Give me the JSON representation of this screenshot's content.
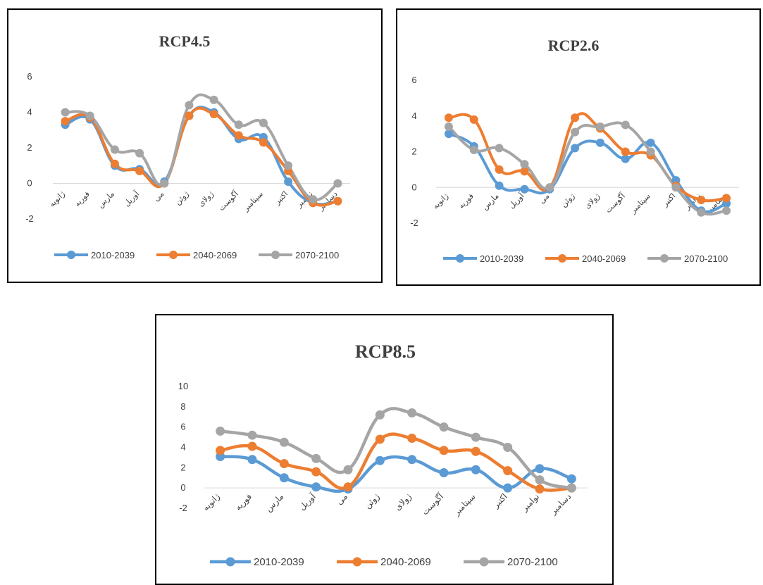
{
  "colors": {
    "s1": "#5b9bd5",
    "s2": "#ed7d31",
    "s3": "#a5a5a5",
    "axis": "#d9d9d9",
    "text": "#404040",
    "border": "#000000"
  },
  "months": [
    "ژانویه",
    "فوریه",
    "مارس",
    "آوریل",
    "می",
    "ژوئن",
    "ژولای",
    "آگوست",
    "سپتامبر",
    "اکتبر",
    "نوامبر",
    "دسامبر"
  ],
  "chart_data": [
    {
      "type": "line",
      "title": "RCP4.5",
      "categories": [
        "ژانویه",
        "فوریه",
        "مارس",
        "آوریل",
        "می",
        "ژوئن",
        "ژولای",
        "آگوست",
        "سپتامبر",
        "اکتبر",
        "نوامبر",
        "دسامبر"
      ],
      "ylim": [
        -2,
        6
      ],
      "yticks": [
        "-2",
        "0",
        "2",
        "4",
        "6"
      ],
      "grid": false,
      "legend_position": "bottom",
      "series": [
        {
          "name": "2010-2039",
          "values": [
            3.3,
            3.6,
            1.0,
            0.8,
            0.1,
            3.8,
            4.0,
            2.5,
            2.6,
            0.1,
            -1.1,
            -1.0
          ]
        },
        {
          "name": "2040-2069",
          "values": [
            3.5,
            3.7,
            1.1,
            0.7,
            0.0,
            3.8,
            3.9,
            2.7,
            2.3,
            0.7,
            -1.1,
            -1.0
          ]
        },
        {
          "name": "2070-2100",
          "values": [
            4.0,
            3.8,
            1.9,
            1.7,
            0.0,
            4.4,
            4.7,
            3.3,
            3.4,
            1.0,
            -0.9,
            0.0
          ]
        }
      ]
    },
    {
      "type": "line",
      "title": "RCP2.6",
      "categories": [
        "ژانویه",
        "فوریه",
        "مارس",
        "آوریل",
        "می",
        "ژوئن",
        "ژولای",
        "آگوست",
        "سپتامبر",
        "اکتبر",
        "نوامبر",
        "دسامبر"
      ],
      "ylim": [
        -2,
        6
      ],
      "yticks": [
        "-2",
        "0",
        "2",
        "4",
        "6"
      ],
      "grid": false,
      "legend_position": "bottom",
      "series": [
        {
          "name": "2010-2039",
          "values": [
            3.0,
            2.3,
            0.1,
            -0.1,
            -0.1,
            2.2,
            2.5,
            1.6,
            2.5,
            0.4,
            -1.3,
            -0.9
          ]
        },
        {
          "name": "2040-2069",
          "values": [
            3.9,
            3.8,
            1.0,
            0.9,
            0.0,
            3.9,
            3.3,
            2.0,
            1.8,
            0.1,
            -0.7,
            -0.6
          ]
        },
        {
          "name": "2070-2100",
          "values": [
            3.4,
            2.1,
            2.2,
            1.3,
            0.0,
            3.1,
            3.4,
            3.5,
            2.0,
            0.0,
            -1.4,
            -1.3
          ]
        }
      ]
    },
    {
      "type": "line",
      "title": "RCP8.5",
      "categories": [
        "ژانویه",
        "فوریه",
        "مارس",
        "آوریل",
        "می",
        "ژوئن",
        "ژولای",
        "آگوست",
        "سپتامبر",
        "اکتبر",
        "نوامبر",
        "دسامبر"
      ],
      "ylim": [
        -2,
        10
      ],
      "yticks": [
        "-2",
        "0",
        "2",
        "4",
        "6",
        "8",
        "10"
      ],
      "grid": false,
      "legend_position": "bottom",
      "series": [
        {
          "name": "2010-2039",
          "values": [
            3.1,
            2.8,
            1.0,
            0.1,
            -0.1,
            2.7,
            2.8,
            1.5,
            1.8,
            0.0,
            1.9,
            0.9
          ]
        },
        {
          "name": "2040-2069",
          "values": [
            3.7,
            4.1,
            2.4,
            1.6,
            0.1,
            4.8,
            4.9,
            3.7,
            3.6,
            1.7,
            -0.1,
            0.0
          ]
        },
        {
          "name": "2070-2100",
          "values": [
            5.6,
            5.2,
            4.5,
            2.9,
            1.8,
            7.2,
            7.4,
            6.0,
            5.0,
            4.0,
            0.8,
            0.0
          ]
        }
      ]
    }
  ]
}
